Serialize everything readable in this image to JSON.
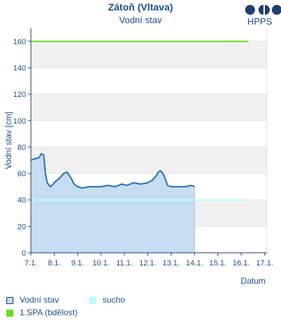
{
  "header": {
    "title": "Zátoň (Vltava)",
    "subtitle": "Vodní stav",
    "logo": "HPPS"
  },
  "legend": [
    {
      "label": "Vodní stav",
      "color": "#c6dcf0",
      "border": "#1f3f6e"
    },
    {
      "label": "sucho",
      "color": "#b8ffff",
      "border": "#b8ffff"
    },
    {
      "label": "1.SPA (bdělost)",
      "color": "#66dd22",
      "border": "#66dd22"
    }
  ],
  "chart_data": {
    "type": "area",
    "title": "Zátoň (Vltava)",
    "subtitle": "Vodní stav",
    "xlabel": "Datum",
    "ylabel": "Vodní stav [cm]",
    "ylim": [
      0,
      170
    ],
    "xlim_days": [
      7,
      17.1
    ],
    "yticks": [
      0,
      20,
      40,
      60,
      80,
      100,
      120,
      140,
      160
    ],
    "xtick_labels": [
      "7.1.",
      "8.1.",
      "9.1.",
      "10.1.",
      "11.1.",
      "12.1.",
      "13.1.",
      "14.1.",
      "15.1.",
      "16.1.",
      "17.1."
    ],
    "grid": "horizontal bands",
    "thresholds": [
      {
        "name": "1.SPA (bdělost)",
        "value": 160,
        "color": "#66dd22"
      },
      {
        "name": "sucho",
        "value": 40,
        "color": "#b8ffff"
      }
    ],
    "series": [
      {
        "name": "Vodní stav",
        "color": "#2a6fb0",
        "fill": "#c6dcf0",
        "x": [
          7.0,
          7.15,
          7.35,
          7.45,
          7.55,
          7.62,
          7.7,
          7.78,
          7.85,
          7.95,
          8.05,
          8.2,
          8.4,
          8.55,
          8.7,
          8.85,
          9.0,
          9.2,
          9.5,
          9.8,
          10.0,
          10.3,
          10.6,
          10.9,
          11.1,
          11.4,
          11.7,
          12.0,
          12.2,
          12.35,
          12.45,
          12.55,
          12.65,
          12.75,
          12.85,
          13.0,
          13.3,
          13.6,
          13.85,
          14.0
        ],
        "y": [
          70,
          71,
          72,
          75,
          74,
          60,
          53,
          51,
          50,
          52,
          54,
          56,
          60,
          61,
          57,
          52,
          50,
          49,
          50,
          50,
          50,
          51,
          50,
          52,
          51,
          53,
          52,
          53,
          55,
          58,
          61,
          62,
          60,
          56,
          51,
          50,
          50,
          50,
          51,
          50
        ]
      }
    ]
  }
}
